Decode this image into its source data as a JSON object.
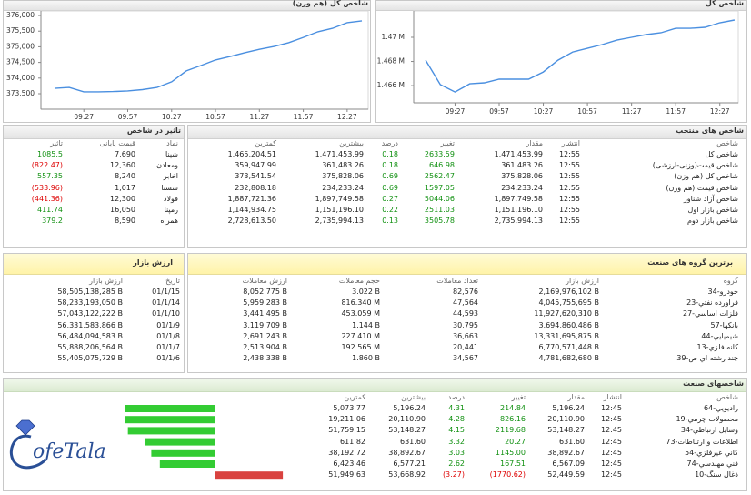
{
  "chart_data": [
    {
      "type": "line",
      "title": "شاخص کل (هم وزن)",
      "categories": [
        null,
        null,
        "09:27",
        null,
        null,
        "09:57",
        null,
        null,
        "10:27",
        null,
        null,
        "10:57",
        null,
        null,
        "11:27",
        null,
        null,
        "11:57",
        null,
        null,
        "12:27",
        null
      ],
      "values": [
        373670,
        373700,
        373560,
        373560,
        373570,
        373590,
        373630,
        373700,
        373880,
        374230,
        374400,
        374580,
        374690,
        374810,
        374920,
        375010,
        375130,
        375300,
        375480,
        375590,
        375770,
        375830
      ],
      "color": "#4a8fe0",
      "ylim": [
        373200,
        376100
      ],
      "yticks": [
        {
          "value": 373500,
          "label": "373,500"
        },
        {
          "value": 374000,
          "label": "374,000"
        },
        {
          "value": 374500,
          "label": "374,500"
        },
        {
          "value": 375000,
          "label": "375,000"
        },
        {
          "value": 375500,
          "label": "375,500"
        },
        {
          "value": 376000,
          "label": "376,000"
        }
      ]
    },
    {
      "type": "line",
      "title": "شاخص کل",
      "categories": [
        null,
        null,
        "09:27",
        null,
        null,
        "09:57",
        null,
        null,
        "10:27",
        null,
        null,
        "10:57",
        null,
        null,
        "11:27",
        null,
        null,
        "11:57",
        null,
        null,
        "12:27",
        null
      ],
      "values": [
        1468110,
        1466080,
        1465470,
        1466150,
        1466230,
        1466530,
        1466530,
        1466530,
        1467130,
        1468110,
        1468790,
        1469090,
        1469400,
        1469770,
        1470000,
        1470230,
        1470380,
        1470750,
        1470750,
        1470830,
        1471210,
        1471430
      ],
      "color": "#4a8fe0",
      "ylim": [
        1464800,
        1471900
      ],
      "yticks": [
        {
          "value": 1466000,
          "label": "1.466 M"
        },
        {
          "value": 1468000,
          "label": "1.468 M"
        },
        {
          "value": 1470000,
          "label": "1.47 M"
        }
      ]
    }
  ],
  "selected_indices": {
    "title": "شاخص های منتخب",
    "columns": [
      "شاخص",
      "انتشار",
      "مقدار",
      "تغییر",
      "درصد",
      "بیشترین",
      "کمترین"
    ],
    "rows": [
      [
        "شاخص کل",
        "12:55",
        "1,471,453.99",
        "2633.59",
        "0.18",
        "1,471,453.99",
        "1,465,204.51"
      ],
      [
        "شاخص قیمت(وزنی-ارزشی)",
        "12:55",
        "361,483.26",
        "646.98",
        "0.18",
        "361,483.26",
        "359,947.99"
      ],
      [
        "شاخص کل (هم وزن)",
        "12:55",
        "375,828.06",
        "2562.47",
        "0.69",
        "375,828.06",
        "373,541.54"
      ],
      [
        "شاخص قیمت (هم وزن)",
        "12:55",
        "234,233.24",
        "1597.05",
        "0.69",
        "234,233.24",
        "232,808.18"
      ],
      [
        "شاخص آزاد شناور",
        "12:55",
        "1,897,749.58",
        "5044.06",
        "0.27",
        "1,897,749.58",
        "1,887,721.36"
      ],
      [
        "شاخص بازار اول",
        "12:55",
        "1,151,196.10",
        "2511.03",
        "0.22",
        "1,151,196.10",
        "1,144,934.75"
      ],
      [
        "شاخص بازار دوم",
        "12:55",
        "2,735,994.13",
        "3505.78",
        "0.13",
        "2,735,994.13",
        "2,728,613.50"
      ]
    ]
  },
  "index_impact": {
    "title": "تاثیر در شاخص",
    "columns": [
      "نماد",
      "قیمت پایانی",
      "تاثیر"
    ],
    "rows": [
      [
        "شپنا",
        "7,690",
        "1085.5"
      ],
      [
        "ومعادن",
        "12,360",
        "(822.47)"
      ],
      [
        "اخابر",
        "8,240",
        "557.35"
      ],
      [
        "شستا",
        "1,017",
        "(533.96)"
      ],
      [
        "فولاد",
        "12,300",
        "(441.36)"
      ],
      [
        "رمپنا",
        "16,050",
        "411.74"
      ],
      [
        "همراه",
        "8,590",
        "379.2"
      ]
    ]
  },
  "market_value": {
    "title": "ارزش بازار",
    "columns": [
      "تاریخ",
      "ارزش بازار"
    ],
    "rows": [
      [
        "01/1/15",
        "58,505,138,285 B"
      ],
      [
        "01/1/14",
        "58,233,193,050 B"
      ],
      [
        "01/1/10",
        "57,043,122,222 B"
      ],
      [
        "01/1/9",
        "56,331,583,866 B"
      ],
      [
        "01/1/8",
        "56,484,094,583 B"
      ],
      [
        "01/1/7",
        "55,888,206,564 B"
      ],
      [
        "01/1/6",
        "55,405,075,729 B"
      ]
    ]
  },
  "top_industry_groups": {
    "title": "برترین گروه های صنعت",
    "columns": [
      "گروه",
      "ارزش بازار",
      "تعداد معاملات",
      "حجم معاملات",
      "ارزش معاملات"
    ],
    "rows": [
      [
        "34-خودرو",
        "2,169,976,102 B",
        "82,576",
        "3.022 B",
        "8,052.775 B"
      ],
      [
        "23-فراورده نفتي",
        "4,045,755,695 B",
        "47,564",
        "816.340 M",
        "5,959.283 B"
      ],
      [
        "27-فلزات اساسي",
        "11,927,620,310 B",
        "44,593",
        "453.059 M",
        "3,441.495 B"
      ],
      [
        "57-بانكها",
        "3,694,860,486 B",
        "30,795",
        "1.144 B",
        "3,119.709 B"
      ],
      [
        "44-شيميايي",
        "13,331,695,875 B",
        "36,663",
        "227.410 M",
        "2,691.243 B"
      ],
      [
        "13-كانه فلزي",
        "6,770,571,448 B",
        "20,441",
        "192.565 M",
        "2,513.904 B"
      ],
      [
        "39-چند رشته اي ص",
        "4,781,682,680 B",
        "34,567",
        "1.860 B",
        "2,438.338 B"
      ]
    ]
  },
  "industry_indices": {
    "title": "شاخصهای صنعت",
    "columns": [
      "شاخص",
      "انتشار",
      "مقدار",
      "تغییر",
      "درصد",
      "بیشترین",
      "کمترین"
    ],
    "rows": [
      [
        "64-راديويي",
        "12:45",
        "5,196.24",
        "214.84",
        "4.31",
        "5,196.24",
        "5,073.77"
      ],
      [
        "19-محصولات چرمي",
        "12:45",
        "20,110.90",
        "826.16",
        "4.28",
        "20,110.90",
        "19,211.06"
      ],
      [
        "34-وسايل ارتباطي",
        "12:45",
        "53,148.27",
        "2119.68",
        "4.15",
        "53,148.27",
        "51,759.15"
      ],
      [
        "73-اطلاعات و ارتباطات",
        "12:45",
        "631.60",
        "20.27",
        "3.32",
        "631.60",
        "611.82"
      ],
      [
        "54-كاني غيرفلزي",
        "12:45",
        "38,892.67",
        "1145.00",
        "3.03",
        "38,892.67",
        "38,192.72"
      ],
      [
        "74-فني مهندسي",
        "12:45",
        "6,567.09",
        "167.51",
        "2.62",
        "6,577.21",
        "6,423.46"
      ],
      [
        "10-ذغال سنگ",
        "12:45",
        "52,449.59",
        "(1770.62)",
        "(3.27)",
        "53,668.92",
        "51,949.63"
      ]
    ],
    "bar_values": [
      4.31,
      4.28,
      4.15,
      3.32,
      3.03,
      2.62,
      -3.27
    ]
  },
  "logo": "ofeTala"
}
